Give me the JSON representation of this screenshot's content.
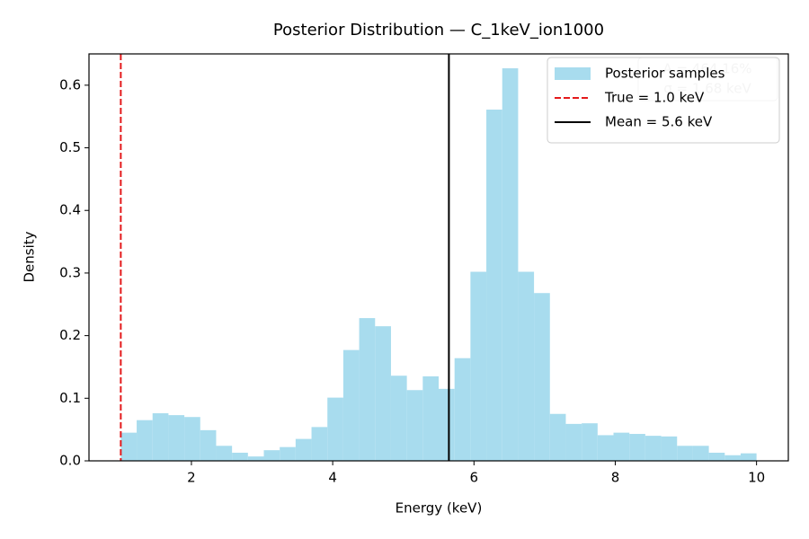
{
  "chart_data": {
    "type": "histogram",
    "title": "Posterior Distribution — C_1keV_ion1000",
    "xlabel": "Energy (keV)",
    "ylabel": "Density",
    "bins": [
      1,
      1.225,
      1.45,
      1.675,
      1.9,
      2.125,
      2.35,
      2.575,
      2.8,
      3.025,
      3.25,
      3.475,
      3.7,
      3.925,
      4.15,
      4.375,
      4.6,
      4.825,
      5.05,
      5.275,
      5.5,
      5.725,
      5.95,
      6.175,
      6.4,
      6.625,
      6.85,
      7.075,
      7.3,
      7.525,
      7.75,
      7.975,
      8.2,
      8.425,
      8.65,
      8.875,
      9.1,
      9.325,
      9.55,
      9.775,
      10
    ],
    "series": [
      {
        "name": "Posterior samples",
        "color": "#a8dcee",
        "values": [
          0.045,
          0.065,
          0.076,
          0.073,
          0.07,
          0.049,
          0.024,
          0.013,
          0.007,
          0.017,
          0.022,
          0.035,
          0.054,
          0.101,
          0.177,
          0.228,
          0.215,
          0.136,
          0.113,
          0.135,
          0.115,
          0.164,
          0.302,
          0.561,
          0.627,
          0.302,
          0.268,
          0.075,
          0.059,
          0.06,
          0.041,
          0.045,
          0.043,
          0.04,
          0.039,
          0.024,
          0.024,
          0.013,
          0.009,
          0.012
        ]
      }
    ],
    "vlines": [
      {
        "name": "True = 1.0 keV",
        "x": 1.0,
        "color": "#e41a1c",
        "dashed": true
      },
      {
        "name": "Mean = 5.6 keV",
        "x": 5.645,
        "color": "#000000",
        "dashed": false
      }
    ],
    "annotation": [
      "A = 464.16%",
      "σ = 1.68 keV"
    ],
    "xlim": [
      0.55,
      10.45
    ],
    "ylim": [
      0,
      0.65
    ],
    "xticks": [
      2,
      4,
      6,
      8,
      10
    ],
    "yticks": [
      {
        "value": 0,
        "label": "0.0"
      },
      0.1,
      0.2,
      0.3,
      0.4,
      0.5,
      0.6
    ],
    "legend": "upper right"
  }
}
